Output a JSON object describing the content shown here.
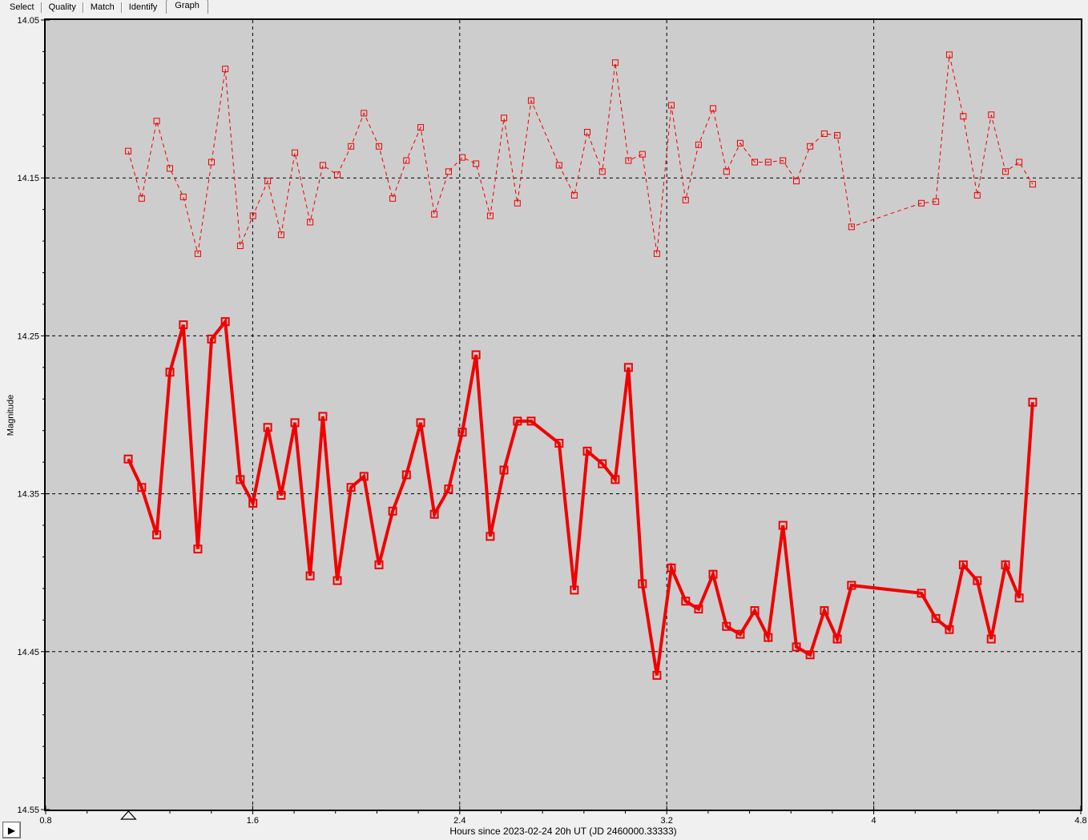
{
  "tabs": {
    "items": [
      {
        "label": "Select",
        "active": false
      },
      {
        "label": "Quality",
        "active": false
      },
      {
        "label": "Match",
        "active": false
      },
      {
        "label": "Identify",
        "active": false
      },
      {
        "label": "Graph",
        "active": true
      }
    ]
  },
  "controls": {
    "play_button": {
      "icon": "play-icon",
      "glyph": "▶"
    }
  },
  "chart_data": {
    "type": "line",
    "title": "",
    "xlabel": "Hours since 2023-02-24 20h UT (JD 2460000.33333)",
    "ylabel": "Magnitude",
    "xlim": [
      0.8,
      4.8
    ],
    "ylim": [
      14.05,
      14.55
    ],
    "y_axis_note": "magnitude axis, brighter (smaller value) at top",
    "grid": "dashed black lines at interior major ticks, both axes",
    "legend": "none",
    "x_ticks": [
      {
        "label": "0.8",
        "value": 0.8
      },
      {
        "label": "1.6",
        "value": 1.6
      },
      {
        "label": "2.4",
        "value": 2.4
      },
      {
        "label": "3.2",
        "value": 3.2
      },
      {
        "label": "4",
        "value": 4.0
      },
      {
        "label": "4.8",
        "value": 4.8
      }
    ],
    "y_ticks": [
      {
        "label": "14.05",
        "value": 14.05
      },
      {
        "label": "14.15",
        "value": 14.15
      },
      {
        "label": "14.25",
        "value": 14.25
      },
      {
        "label": "14.35",
        "value": 14.35
      },
      {
        "label": "14.45",
        "value": 14.45
      },
      {
        "label": "14.55",
        "value": 14.55
      }
    ],
    "x_minor_step": 0.16,
    "y_minor_step": 0.02,
    "colors": {
      "series": "#f00000",
      "plot_bg": "#cdcdcd",
      "outer_bg": "#f0f0f0",
      "grid": "#000000",
      "axis": "#000000"
    },
    "x": [
      1.119,
      1.171,
      1.229,
      1.28,
      1.332,
      1.388,
      1.441,
      1.494,
      1.552,
      1.601,
      1.658,
      1.71,
      1.763,
      1.822,
      1.871,
      1.927,
      1.98,
      2.03,
      2.088,
      2.141,
      2.194,
      2.249,
      2.302,
      2.357,
      2.41,
      2.463,
      2.518,
      2.571,
      2.623,
      2.676,
      2.784,
      2.843,
      2.893,
      2.951,
      3.001,
      3.052,
      3.106,
      3.162,
      3.218,
      3.273,
      3.323,
      3.379,
      3.431,
      3.484,
      3.54,
      3.592,
      3.649,
      3.701,
      3.754,
      3.809,
      3.859,
      3.914,
      4.184,
      4.24,
      4.292,
      4.346,
      4.4,
      4.454,
      4.509,
      4.562,
      4.614
    ],
    "series": [
      {
        "name": "upper-dashed-series",
        "line": "dashed-thin",
        "marker": "open-square",
        "values": [
          14.133,
          14.163,
          14.114,
          14.144,
          14.162,
          14.198,
          14.14,
          14.081,
          14.193,
          14.174,
          14.152,
          14.186,
          14.134,
          14.178,
          14.142,
          14.148,
          14.13,
          14.109,
          14.13,
          14.163,
          14.139,
          14.118,
          14.173,
          14.146,
          14.137,
          14.141,
          14.174,
          14.112,
          14.166,
          14.101,
          14.142,
          14.161,
          14.121,
          14.146,
          14.077,
          14.139,
          14.135,
          14.198,
          14.104,
          14.164,
          14.129,
          14.106,
          14.146,
          14.128,
          14.14,
          14.14,
          14.139,
          14.152,
          14.13,
          14.122,
          14.123,
          14.181,
          14.166,
          14.165,
          14.072,
          14.111,
          14.161,
          14.11,
          14.146,
          14.14,
          14.154
        ]
      },
      {
        "name": "lower-thick-series",
        "line": "solid-thick",
        "marker": "open-square",
        "values": [
          14.328,
          14.346,
          14.376,
          14.273,
          14.243,
          14.385,
          14.252,
          14.241,
          14.341,
          14.356,
          14.308,
          14.351,
          14.305,
          14.402,
          14.301,
          14.405,
          14.346,
          14.339,
          14.395,
          14.361,
          14.338,
          14.305,
          14.363,
          14.347,
          14.311,
          14.262,
          14.377,
          14.335,
          14.304,
          14.304,
          14.318,
          14.411,
          14.323,
          14.331,
          14.341,
          14.27,
          14.407,
          14.465,
          14.397,
          14.418,
          14.423,
          14.401,
          14.434,
          14.439,
          14.424,
          14.441,
          14.37,
          14.447,
          14.452,
          14.424,
          14.442,
          14.408,
          14.413,
          14.429,
          14.436,
          14.395,
          14.405,
          14.442,
          14.395,
          14.416,
          14.292
        ]
      }
    ],
    "annotations": [
      {
        "shape": "triangle-up-outline",
        "x_hour": 1.12,
        "position": "below-x-axis"
      }
    ]
  }
}
